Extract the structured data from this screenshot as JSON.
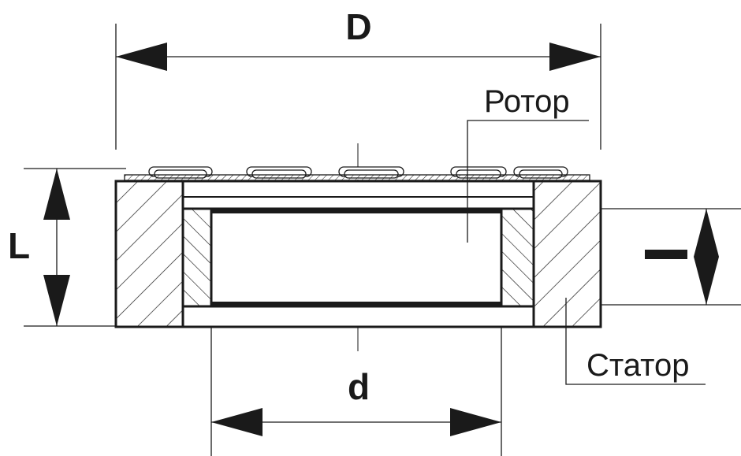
{
  "diagram": {
    "dimensions": {
      "outer_diameter": "D",
      "inner_diameter": "d",
      "stator_length": "L",
      "rotor_length": "l"
    },
    "callouts": {
      "rotor": "Ротор",
      "stator": "Статор"
    }
  }
}
